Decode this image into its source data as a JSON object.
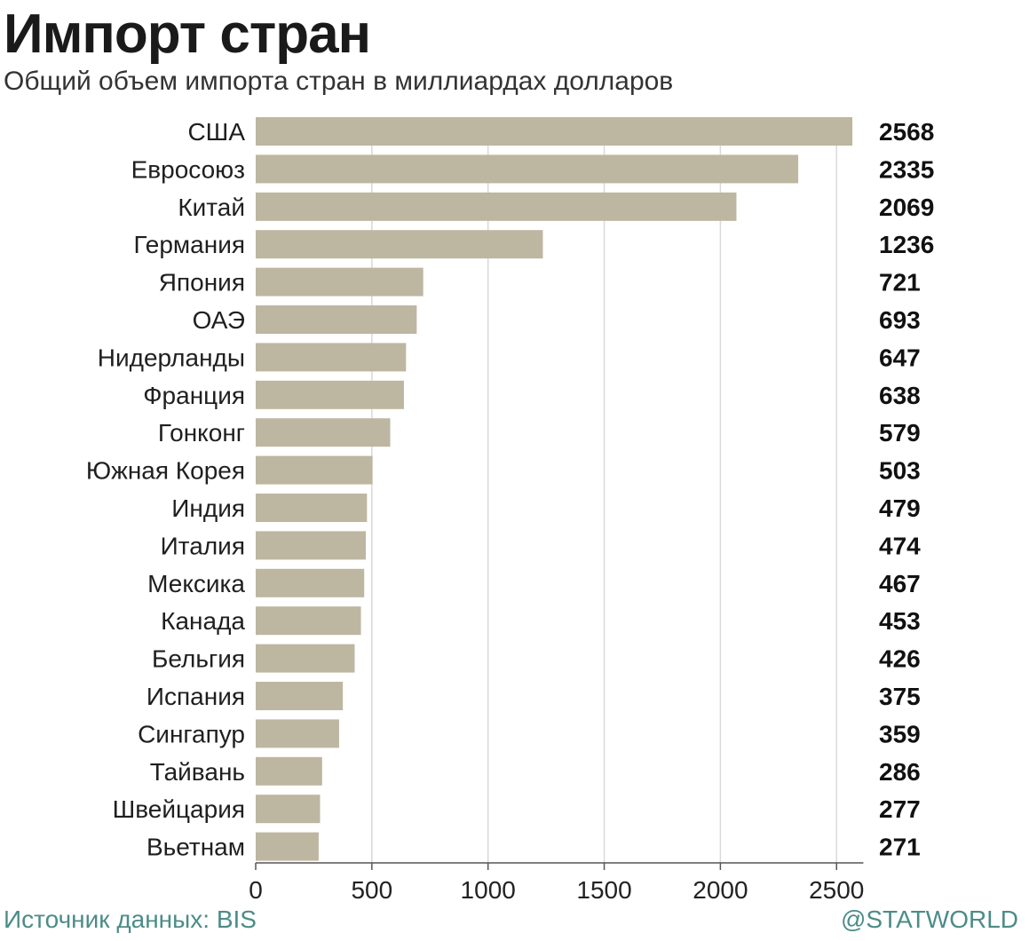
{
  "header": {
    "title": "Импорт стран",
    "subtitle": "Общий объем импорта стран в миллиардах долларов"
  },
  "footer": {
    "source": "Источник данных: BIS",
    "credit": "@STATWORLD"
  },
  "colors": {
    "bar": "#bdb6a1",
    "grid": "#d9d9d9",
    "axis": "#555555",
    "footer_text": "#4c8c88"
  },
  "chart_data": {
    "type": "bar",
    "orientation": "horizontal",
    "title": "Импорт стран",
    "subtitle": "Общий объем импорта стран в миллиардах долларов",
    "xlabel": "",
    "ylabel": "",
    "xlim": [
      0,
      2600
    ],
    "x_ticks": [
      0,
      500,
      1000,
      1500,
      2000,
      2500
    ],
    "grid": "vertical",
    "legend": "none",
    "categories": [
      "США",
      "Евросоюз",
      "Китай",
      "Германия",
      "Япония",
      "ОАЭ",
      "Нидерланды",
      "Франция",
      "Гонконг",
      "Южная Корея",
      "Индия",
      "Италия",
      "Мексика",
      "Канада",
      "Бельгия",
      "Испания",
      "Сингапур",
      "Тайвань",
      "Швейцария",
      "Вьетнам"
    ],
    "values": [
      2568,
      2335,
      2069,
      1236,
      721,
      693,
      647,
      638,
      579,
      503,
      479,
      474,
      467,
      453,
      426,
      375,
      359,
      286,
      277,
      271
    ]
  }
}
